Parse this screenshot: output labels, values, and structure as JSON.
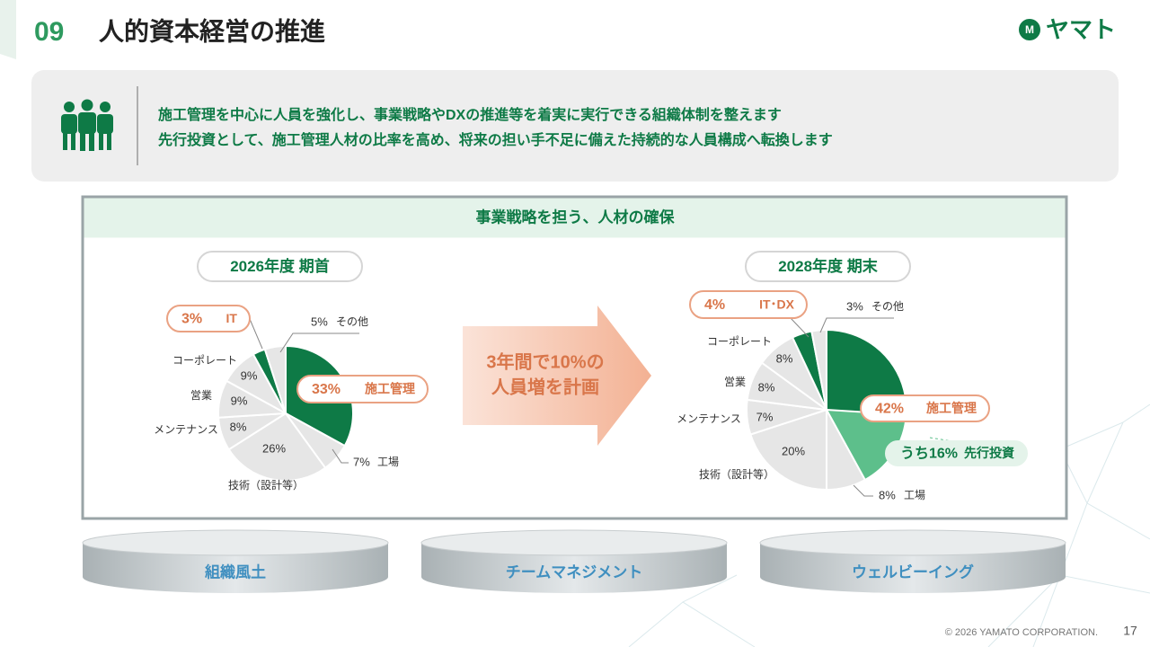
{
  "header": {
    "number": "09",
    "title": "人的資本経営の推進",
    "logo": "ヤマト"
  },
  "message": {
    "lines": [
      "施工管理を中心に人員を強化し、事業戦略やDXの推進等を着実に実行できる組織体制を整えます",
      "先行投資として、施工管理人材の比率を高め、将来の担い手不足に備えた持続的な人員構成へ転換します"
    ]
  },
  "section": {
    "title": "事業戦略を担う、人材の確保"
  },
  "arrow_text": [
    "3年間で10%の",
    "人員増を計画"
  ],
  "chart_data": [
    {
      "type": "pie",
      "title": "2026年度 期首",
      "categories": [
        "施工管理",
        "工場",
        "技術（設計等）",
        "メンテナンス",
        "営業",
        "コーポレート",
        "IT",
        "その他"
      ],
      "values": [
        33,
        7,
        26,
        8,
        9,
        9,
        3,
        5
      ],
      "value_labels": [
        "33%",
        "7%",
        "26%",
        "8%",
        "9%",
        "9%",
        "3%",
        "5%"
      ],
      "colors": [
        "#0e7a46",
        "#e6e6e6",
        "#e6e6e6",
        "#e6e6e6",
        "#e6e6e6",
        "#e6e6e6",
        "#0e7a46",
        "#e6e6e6"
      ]
    },
    {
      "type": "pie",
      "title": "2028年度 期末",
      "categories": [
        "施工管理",
        "工場",
        "技術（設計等）",
        "メンテナンス",
        "営業",
        "コーポレート",
        "IT･DX",
        "その他"
      ],
      "values": [
        42,
        8,
        20,
        7,
        8,
        8,
        4,
        3
      ],
      "value_labels": [
        "42%",
        "8%",
        "20%",
        "7%",
        "8%",
        "8%",
        "4%",
        "3%"
      ],
      "colors": [
        "#0e7a46",
        "#e6e6e6",
        "#e6e6e6",
        "#e6e6e6",
        "#e6e6e6",
        "#e6e6e6",
        "#0e7a46",
        "#e6e6e6"
      ],
      "breakdown": {
        "name": "先行投資",
        "value": 16,
        "value_label": "うち16%",
        "color": "#5dbf8b"
      }
    }
  ],
  "foundations": [
    "組織風土",
    "チームマネジメント",
    "ウェルビーイング"
  ],
  "footer": {
    "copyright": "© 2026 YAMATO CORPORATION.",
    "page": "17"
  }
}
